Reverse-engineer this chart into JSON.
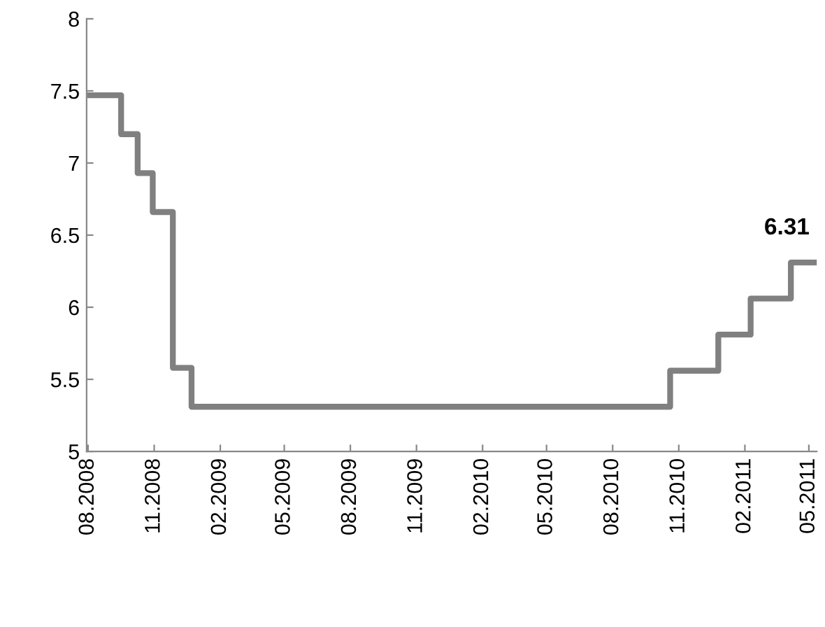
{
  "chart_data": {
    "type": "step",
    "x": [
      "2008-07-30",
      "2008-09-16",
      "2008-10-09",
      "2008-10-30",
      "2008-11-27",
      "2008-12-23",
      "2010-10-20",
      "2010-12-26",
      "2011-02-09",
      "2011-04-06",
      "2011-05-12"
    ],
    "series": [
      {
        "color": "#808080",
        "values": [
          7.47,
          7.2,
          6.93,
          6.66,
          5.58,
          5.31,
          5.56,
          5.81,
          6.06,
          6.31,
          6.31
        ]
      }
    ],
    "annotations": [
      {
        "text": "6.31",
        "x": "2011-04-22",
        "y": 6.31
      }
    ],
    "xlim": [
      "2008-07-30",
      "2011-05-12"
    ],
    "xticks": [
      {
        "value": "2008-08-01",
        "label": "08.2008"
      },
      {
        "value": "2008-11-01",
        "label": "11.2008"
      },
      {
        "value": "2009-02-01",
        "label": "02.2009"
      },
      {
        "value": "2009-05-01",
        "label": "05.2009"
      },
      {
        "value": "2009-08-01",
        "label": "08.2009"
      },
      {
        "value": "2009-11-01",
        "label": "11.2009"
      },
      {
        "value": "2010-02-01",
        "label": "02.2010"
      },
      {
        "value": "2010-05-01",
        "label": "05.2010"
      },
      {
        "value": "2010-08-01",
        "label": "08.2010"
      },
      {
        "value": "2010-11-01",
        "label": "11.2010"
      },
      {
        "value": "2011-02-01",
        "label": "02.2011"
      },
      {
        "value": "2011-05-01",
        "label": "05.2011"
      }
    ],
    "ylim": [
      5,
      8
    ],
    "yticks": [
      5,
      5.5,
      6,
      6.5,
      7,
      7.5,
      8
    ],
    "grid": false,
    "marker": "none",
    "line_style": "solid"
  }
}
